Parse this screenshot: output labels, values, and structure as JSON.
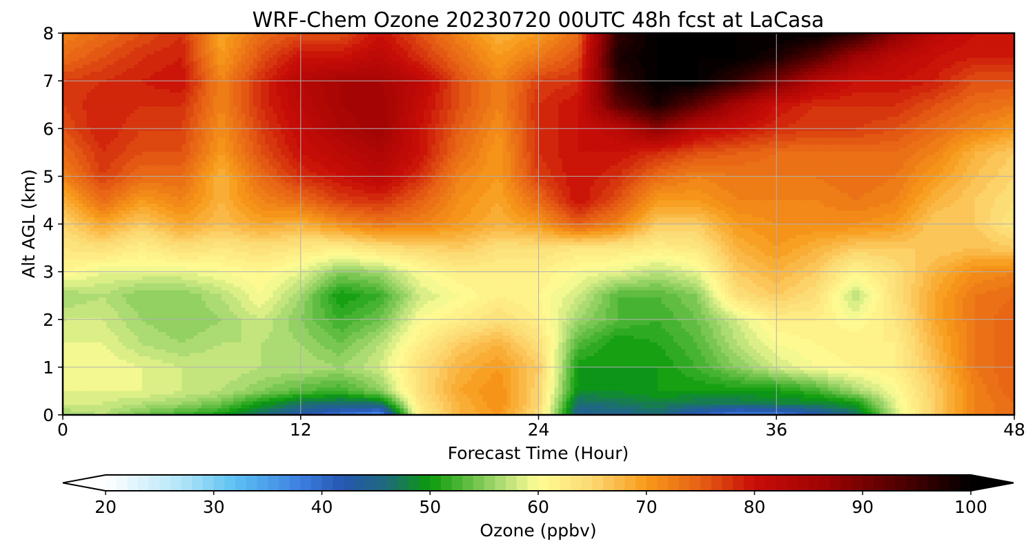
{
  "chart_data": {
    "type": "heatmap",
    "title": "WRF-Chem Ozone  20230720 00UTC 48h fcst at LaCasa",
    "xlabel": "Forecast Time (Hour)",
    "ylabel": "Alt AGL (km)",
    "xlim": [
      0,
      48
    ],
    "ylim": [
      0,
      8
    ],
    "x_ticks": [
      0,
      12,
      24,
      36,
      48
    ],
    "y_ticks": [
      0,
      1,
      2,
      3,
      4,
      5,
      6,
      7,
      8
    ],
    "grid": true,
    "x": [
      0,
      2,
      4,
      6,
      8,
      10,
      12,
      14,
      16,
      18,
      20,
      22,
      24,
      26,
      28,
      30,
      32,
      34,
      36,
      38,
      40,
      42,
      44,
      46,
      48
    ],
    "y": [
      0,
      0.25,
      0.5,
      1,
      1.5,
      2,
      2.5,
      3,
      3.5,
      4,
      4.5,
      5,
      5.5,
      6,
      6.5,
      7,
      7.5,
      8
    ],
    "z": [
      [
        56,
        57,
        54,
        52,
        50,
        46,
        42,
        39,
        36,
        62,
        68,
        70,
        64,
        44,
        44,
        46,
        41,
        38,
        38,
        42,
        46,
        58,
        66,
        72,
        74
      ],
      [
        58,
        58,
        57,
        56,
        54,
        50,
        47,
        46,
        47,
        63,
        68,
        71,
        65,
        46,
        47,
        48,
        47,
        47,
        48,
        48,
        50,
        59,
        66,
        72,
        74
      ],
      [
        59,
        59,
        59,
        58,
        57,
        55,
        53,
        52,
        55,
        64,
        69,
        71,
        65,
        49,
        49,
        50,
        50,
        50,
        50,
        52,
        56,
        60,
        66,
        72,
        75
      ],
      [
        60,
        60,
        59,
        58,
        58,
        57,
        57,
        56,
        58,
        64,
        68,
        70,
        66,
        50,
        50,
        50,
        52,
        55,
        58,
        60,
        61,
        62,
        67,
        73,
        75
      ],
      [
        59,
        59,
        57,
        56,
        57,
        57,
        56,
        54,
        57,
        62,
        66,
        68,
        64,
        53,
        50,
        51,
        53,
        57,
        60,
        61,
        62,
        62,
        68,
        73,
        75
      ],
      [
        58,
        58,
        56,
        55,
        56,
        58,
        55,
        52,
        54,
        60,
        62,
        64,
        62,
        56,
        53,
        52,
        54,
        58,
        62,
        62,
        60,
        63,
        69,
        73,
        75
      ],
      [
        56,
        57,
        55,
        55,
        57,
        60,
        56,
        50,
        52,
        58,
        60,
        62,
        61,
        58,
        53,
        53,
        55,
        64,
        66,
        64,
        57,
        64,
        69,
        73,
        74
      ],
      [
        61,
        59,
        59,
        59,
        60,
        61,
        59,
        55,
        56,
        60,
        62,
        62,
        62,
        60,
        59,
        57,
        59,
        66,
        68,
        66,
        61,
        64,
        68,
        71,
        72
      ],
      [
        63,
        64,
        62,
        64,
        63,
        64,
        63,
        62,
        64,
        65,
        66,
        64,
        64,
        63,
        63,
        62,
        63,
        68,
        70,
        68,
        66,
        66,
        66,
        67,
        66
      ],
      [
        65,
        69,
        66,
        69,
        67,
        69,
        68,
        71,
        73,
        72,
        70,
        68,
        70,
        75,
        72,
        66,
        66,
        70,
        71,
        71,
        71,
        70,
        66,
        66,
        63
      ],
      [
        68,
        74,
        70,
        72,
        68,
        72,
        74,
        77,
        78,
        75,
        71,
        69,
        74,
        80,
        76,
        70,
        70,
        72,
        72,
        72,
        73,
        72,
        68,
        66,
        64
      ],
      [
        72,
        77,
        74,
        74,
        68,
        74,
        78,
        80,
        82,
        78,
        72,
        70,
        77,
        80,
        78,
        74,
        72,
        73,
        73,
        73,
        74,
        73,
        70,
        67,
        65
      ],
      [
        74,
        78,
        76,
        76,
        70,
        76,
        80,
        82,
        84,
        80,
        74,
        70,
        78,
        80,
        80,
        78,
        76,
        75,
        74,
        74,
        74,
        74,
        72,
        68,
        66
      ],
      [
        76,
        79,
        77,
        77,
        71,
        77,
        81,
        84,
        86,
        80,
        75,
        71,
        78,
        80,
        82,
        88,
        82,
        80,
        78,
        77,
        77,
        76,
        74,
        72,
        70
      ],
      [
        77,
        79,
        78,
        78,
        72,
        78,
        82,
        85,
        86,
        81,
        76,
        72,
        78,
        80,
        92,
        98,
        92,
        85,
        80,
        78,
        78,
        78,
        76,
        74,
        73
      ],
      [
        77,
        78,
        79,
        80,
        72,
        78,
        83,
        85,
        85,
        82,
        76,
        72,
        77,
        78,
        96,
        100,
        100,
        96,
        90,
        83,
        80,
        80,
        79,
        76,
        76
      ],
      [
        74,
        76,
        78,
        79,
        70,
        76,
        80,
        80,
        82,
        78,
        74,
        70,
        73,
        76,
        98,
        100,
        100,
        100,
        98,
        93,
        86,
        82,
        80,
        79,
        79
      ],
      [
        72,
        74,
        76,
        78,
        69,
        74,
        76,
        76,
        80,
        76,
        72,
        68,
        70,
        74,
        96,
        100,
        100,
        100,
        100,
        100,
        96,
        88,
        82,
        80,
        80
      ]
    ],
    "colorbar": {
      "label": "Ozone  (ppbv)",
      "vmin": 20,
      "vmax": 100,
      "step": 1,
      "extend": "both",
      "ticks": [
        20,
        30,
        40,
        50,
        60,
        70,
        80,
        90,
        100
      ],
      "stops": [
        {
          "v": 20,
          "c": "#ffffff"
        },
        {
          "v": 27,
          "c": "#b3e5f8"
        },
        {
          "v": 32,
          "c": "#5bc0f2"
        },
        {
          "v": 38,
          "c": "#3d7fe0"
        },
        {
          "v": 42,
          "c": "#2656b0"
        },
        {
          "v": 46,
          "c": "#1e6a7a"
        },
        {
          "v": 50,
          "c": "#0a9b0a"
        },
        {
          "v": 54,
          "c": "#6cc24a"
        },
        {
          "v": 57,
          "c": "#b8e07a"
        },
        {
          "v": 60,
          "c": "#fffd94"
        },
        {
          "v": 65,
          "c": "#fcd872"
        },
        {
          "v": 70,
          "c": "#f79a1a"
        },
        {
          "v": 75,
          "c": "#e66014"
        },
        {
          "v": 80,
          "c": "#c80d07"
        },
        {
          "v": 87,
          "c": "#9a0303"
        },
        {
          "v": 94,
          "c": "#4a0000"
        },
        {
          "v": 100,
          "c": "#000000"
        }
      ]
    }
  }
}
